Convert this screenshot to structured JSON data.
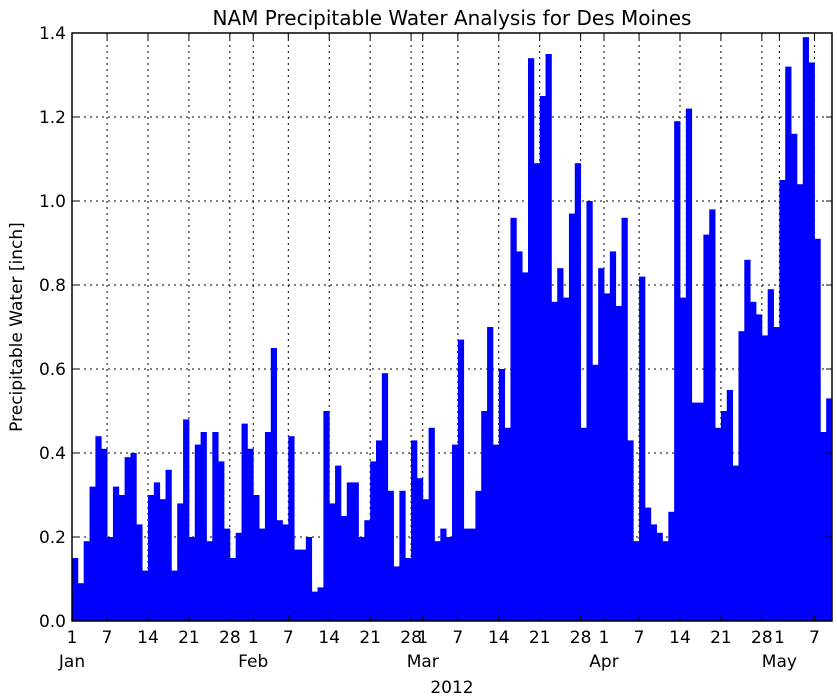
{
  "chart_data": {
    "type": "bar",
    "title": "NAM Precipitable Water Analysis for Des Moines",
    "ylabel": "Precipitable Water [inch]",
    "xlabel": "2012",
    "ylim": [
      0,
      1.4
    ],
    "yticks": [
      "0.0",
      "0.2",
      "0.4",
      "0.6",
      "0.8",
      "1.0",
      "1.2",
      "1.4"
    ],
    "grid": true,
    "bar_color": "#0000ff",
    "x_start": "2012-01-01",
    "x_end": "2012-05-10",
    "xticks": [
      {
        "date": "2012-01-01",
        "label": "1",
        "month": "Jan"
      },
      {
        "date": "2012-01-07",
        "label": "7"
      },
      {
        "date": "2012-01-14",
        "label": "14"
      },
      {
        "date": "2012-01-21",
        "label": "21"
      },
      {
        "date": "2012-01-28",
        "label": "28"
      },
      {
        "date": "2012-02-01",
        "label": "1",
        "month": "Feb"
      },
      {
        "date": "2012-02-07",
        "label": "7"
      },
      {
        "date": "2012-02-14",
        "label": "14"
      },
      {
        "date": "2012-02-21",
        "label": "21"
      },
      {
        "date": "2012-02-28",
        "label": "28"
      },
      {
        "date": "2012-03-01",
        "label": "1",
        "month": "Mar"
      },
      {
        "date": "2012-03-07",
        "label": "7"
      },
      {
        "date": "2012-03-14",
        "label": "14"
      },
      {
        "date": "2012-03-21",
        "label": "21"
      },
      {
        "date": "2012-03-28",
        "label": "28"
      },
      {
        "date": "2012-04-01",
        "label": "1",
        "month": "Apr"
      },
      {
        "date": "2012-04-07",
        "label": "7"
      },
      {
        "date": "2012-04-14",
        "label": "14"
      },
      {
        "date": "2012-04-21",
        "label": "21"
      },
      {
        "date": "2012-04-28",
        "label": "28"
      },
      {
        "date": "2012-05-01",
        "label": "1",
        "month": "May"
      },
      {
        "date": "2012-05-07",
        "label": "7"
      }
    ],
    "values": [
      0.15,
      0.09,
      0.19,
      0.32,
      0.44,
      0.41,
      0.2,
      0.32,
      0.3,
      0.39,
      0.4,
      0.23,
      0.12,
      0.3,
      0.33,
      0.29,
      0.36,
      0.12,
      0.28,
      0.48,
      0.2,
      0.42,
      0.45,
      0.19,
      0.45,
      0.38,
      0.22,
      0.15,
      0.21,
      0.47,
      0.41,
      0.3,
      0.22,
      0.45,
      0.65,
      0.24,
      0.23,
      0.44,
      0.17,
      0.17,
      0.2,
      0.07,
      0.08,
      0.5,
      0.28,
      0.37,
      0.25,
      0.33,
      0.33,
      0.2,
      0.24,
      0.38,
      0.43,
      0.59,
      0.31,
      0.13,
      0.31,
      0.15,
      0.43,
      0.34,
      0.29,
      0.46,
      0.19,
      0.22,
      0.2,
      0.42,
      0.67,
      0.22,
      0.22,
      0.31,
      0.5,
      0.7,
      0.42,
      0.6,
      0.46,
      0.96,
      0.88,
      0.83,
      1.34,
      1.09,
      1.25,
      1.35,
      0.76,
      0.84,
      0.77,
      0.97,
      1.09,
      0.46,
      1.0,
      0.61,
      0.84,
      0.78,
      0.88,
      0.75,
      0.96,
      0.43,
      0.19,
      0.82,
      0.27,
      0.23,
      0.21,
      0.19,
      0.26,
      1.19,
      0.77,
      1.22,
      0.52,
      0.52,
      0.92,
      0.98,
      0.46,
      0.5,
      0.55,
      0.37,
      0.69,
      0.86,
      0.76,
      0.73,
      0.68,
      0.79,
      0.7,
      1.05,
      1.32,
      1.16,
      1.04,
      1.39,
      1.33,
      0.91,
      0.45,
      0.53
    ]
  }
}
